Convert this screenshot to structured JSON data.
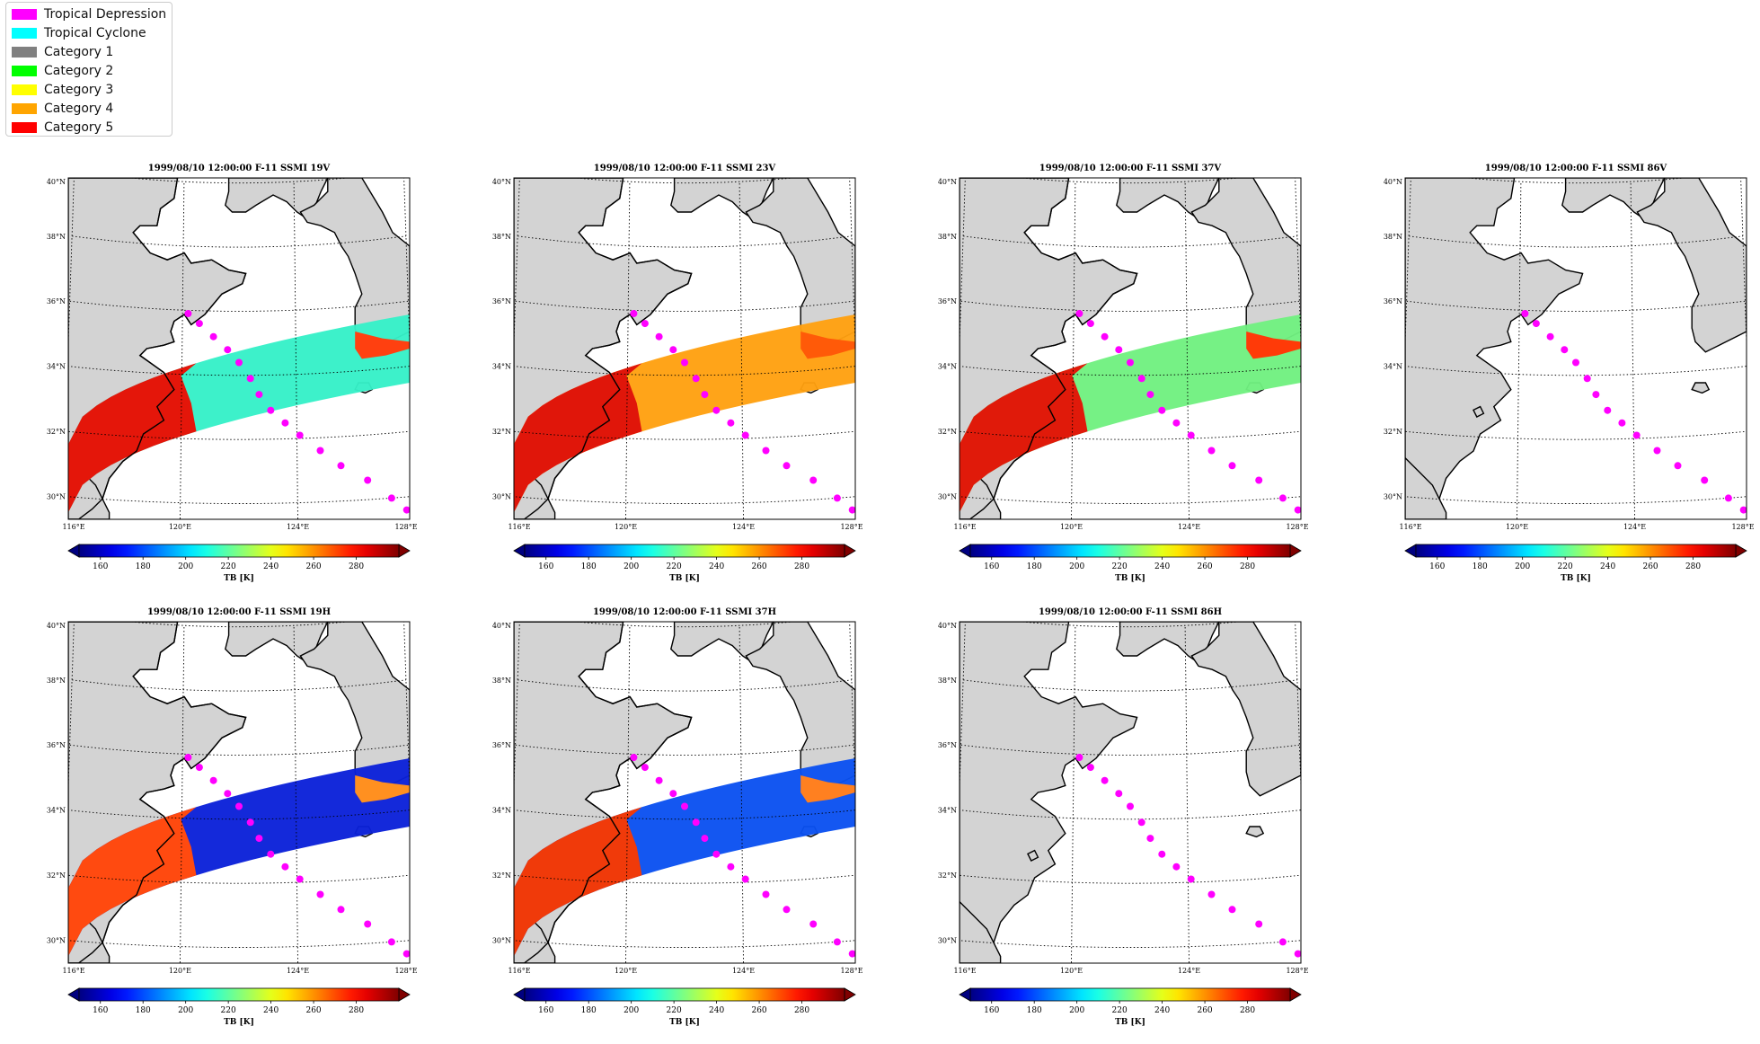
{
  "legend": {
    "items": [
      {
        "label": "Tropical Depression",
        "color": "#ff00ff"
      },
      {
        "label": "Tropical Cyclone",
        "color": "#00ffff"
      },
      {
        "label": "Category 1",
        "color": "#808080"
      },
      {
        "label": "Category 2",
        "color": "#00ff00"
      },
      {
        "label": "Category 3",
        "color": "#ffff00"
      },
      {
        "label": "Category 4",
        "color": "#ffa500"
      },
      {
        "label": "Category 5",
        "color": "#ff0000"
      }
    ]
  },
  "map": {
    "lon_range": [
      116,
      128
    ],
    "lat_range": [
      29.5,
      40
    ],
    "lon_ticks": [
      "116°E",
      "120°E",
      "124°E",
      "128°E"
    ],
    "lat_ticks": [
      "30°N",
      "32°N",
      "34°N",
      "36°N",
      "38°N",
      "40°N"
    ],
    "track_color": "#ff00ff",
    "land_color": "#d3d3d3"
  },
  "colorbar": {
    "label": "TB [K]",
    "range": [
      150,
      300
    ],
    "ticks": [
      "160",
      "180",
      "200",
      "220",
      "240",
      "260",
      "280"
    ]
  },
  "panels": [
    {
      "title": "1999/08/10 12:00:00  F-11 SSMI 19V",
      "swath": true,
      "sea": "#35f0c8",
      "land": "#e4160a",
      "coast": "#ff4010"
    },
    {
      "title": "1999/08/10 12:00:00  F-11 SSMI 23V",
      "swath": true,
      "sea": "#ffa010",
      "land": "#e0160a",
      "coast": "#ff5a08"
    },
    {
      "title": "1999/08/10 12:00:00  F-11 SSMI 37V",
      "swath": true,
      "sea": "#70f080",
      "land": "#e01a0a",
      "coast": "#ff3a08"
    },
    {
      "title": "1999/08/10 12:00:00  F-11 SSMI 86V",
      "swath": false
    },
    {
      "title": "1999/08/10 12:00:00  F-11 SSMI 19H",
      "swath": true,
      "sea": "#0a20d8",
      "land": "#ff4a10",
      "coast": "#ff9020"
    },
    {
      "title": "1999/08/10 12:00:00  F-11 SSMI 37H",
      "swath": true,
      "sea": "#0a50f0",
      "land": "#f03a0a",
      "coast": "#ff8020"
    },
    {
      "title": "1999/08/10 12:00:00  F-11 SSMI 86H",
      "swath": false
    }
  ]
}
